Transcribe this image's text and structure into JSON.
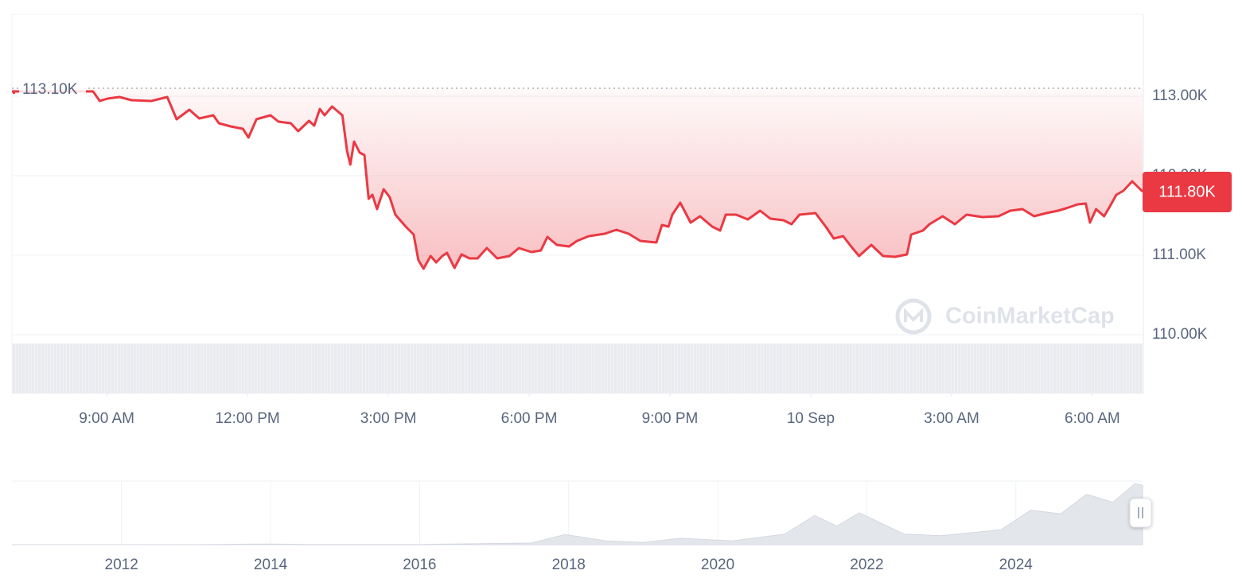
{
  "chart_data": [
    {
      "type": "line",
      "color": "#ea3943",
      "grid": true,
      "x": [
        6.98,
        8.71,
        8.85,
        9.02,
        9.27,
        9.53,
        9.95,
        10.29,
        10.49,
        10.76,
        10.97,
        11.27,
        11.39,
        11.64,
        11.9,
        12.02,
        12.19,
        12.49,
        12.66,
        12.92,
        13.08,
        13.31,
        13.42,
        13.54,
        13.64,
        13.8,
        14.02,
        14.12,
        14.19,
        14.27,
        14.39,
        14.49,
        14.58,
        14.66,
        14.76,
        14.9,
        15.03,
        15.15,
        15.37,
        15.54,
        15.64,
        15.75,
        15.9,
        16.02,
        16.15,
        16.25,
        16.41,
        16.56,
        16.73,
        16.9,
        17.1,
        17.32,
        17.58,
        17.78,
        18.05,
        18.25,
        18.39,
        18.59,
        18.85,
        19.02,
        19.27,
        19.61,
        19.86,
        20.12,
        20.37,
        20.71,
        20.83,
        20.97,
        21.05,
        21.22,
        21.44,
        21.64,
        21.9,
        22.07,
        22.19,
        22.41,
        22.66,
        22.92,
        23.14,
        23.42,
        23.59,
        23.76,
        24.1,
        24.32,
        24.49,
        24.69,
        24.86,
        25.03,
        25.29,
        25.54,
        25.8,
        26.05,
        26.14,
        26.39,
        26.53,
        26.81,
        27.07,
        27.32,
        27.66,
        28.0,
        28.25,
        28.51,
        28.76,
        29.02,
        29.27,
        29.44,
        29.69,
        29.86,
        29.95,
        30.08,
        30.25,
        30.37,
        30.51,
        30.66,
        30.85,
        31.07
      ],
      "values": [
        113060,
        113060,
        112940,
        112970,
        112990,
        112950,
        112940,
        112990,
        112710,
        112830,
        112720,
        112760,
        112660,
        112620,
        112590,
        112480,
        112710,
        112760,
        112680,
        112660,
        112560,
        112690,
        112630,
        112840,
        112760,
        112870,
        112760,
        112310,
        112140,
        112430,
        112290,
        112260,
        111710,
        111760,
        111580,
        111830,
        111730,
        111510,
        111360,
        111260,
        110940,
        110830,
        110990,
        110910,
        110990,
        111030,
        110840,
        111010,
        110960,
        110960,
        111090,
        110960,
        110990,
        111090,
        111040,
        111060,
        111230,
        111130,
        111110,
        111180,
        111240,
        111270,
        111320,
        111270,
        111180,
        111160,
        111380,
        111360,
        111510,
        111660,
        111410,
        111490,
        111360,
        111310,
        111510,
        111510,
        111450,
        111560,
        111460,
        111440,
        111390,
        111510,
        111530,
        111360,
        111210,
        111240,
        111110,
        110990,
        111130,
        110990,
        110980,
        111010,
        111260,
        111310,
        111390,
        111490,
        111390,
        111510,
        111480,
        111490,
        111560,
        111580,
        111490,
        111530,
        111560,
        111590,
        111640,
        111650,
        111410,
        111580,
        111490,
        111610,
        111760,
        111810,
        111930,
        111800
      ],
      "xlim": [
        6.98,
        31.07
      ],
      "ylim": [
        109260,
        114030
      ],
      "xticks": [
        {
          "value": 9,
          "label": "9:00 AM"
        },
        {
          "value": 12,
          "label": "12:00 PM"
        },
        {
          "value": 15,
          "label": "3:00 PM"
        },
        {
          "value": 18,
          "label": "6:00 PM"
        },
        {
          "value": 21,
          "label": "9:00 PM"
        },
        {
          "value": 24,
          "label": "10 Sep"
        },
        {
          "value": 27,
          "label": "3:00 AM"
        },
        {
          "value": 30,
          "label": "6:00 AM"
        }
      ],
      "yticks": [
        {
          "value": 110000,
          "label": "110.00K"
        },
        {
          "value": 111000,
          "label": "111.00K"
        },
        {
          "value": 112000,
          "label": "112.00K"
        },
        {
          "value": 113000,
          "label": "113.00K"
        }
      ],
      "reference": {
        "value": 113100,
        "label": "113.10K"
      },
      "current_price": {
        "value": 111800,
        "label": "111.80K"
      },
      "watermark": "CoinMarketCap"
    },
    {
      "type": "area",
      "color": "#e3e6eb",
      "x": [
        2010.53,
        2012.0,
        2013.0,
        2013.9,
        2014.5,
        2016.0,
        2017.5,
        2017.95,
        2018.5,
        2019.0,
        2019.5,
        2020.2,
        2020.9,
        2021.3,
        2021.6,
        2021.9,
        2022.5,
        2023.0,
        2023.8,
        2024.2,
        2024.6,
        2024.95,
        2025.3,
        2025.6,
        2025.7
      ],
      "values": [
        0,
        0,
        100,
        1000,
        500,
        400,
        3000,
        19000,
        7000,
        4000,
        12000,
        7000,
        20000,
        55000,
        35000,
        60000,
        20000,
        17000,
        28000,
        65000,
        58000,
        95000,
        80000,
        115000,
        112000
      ],
      "xlim": [
        2010.53,
        2025.7
      ],
      "ylim": [
        0,
        120000
      ],
      "xticks": [
        2012,
        2014,
        2016,
        2018,
        2020,
        2022,
        2024
      ]
    }
  ]
}
